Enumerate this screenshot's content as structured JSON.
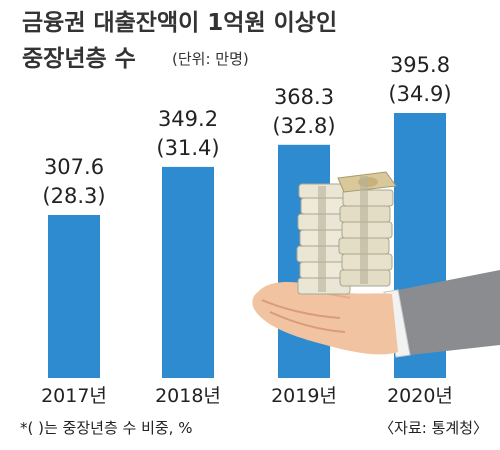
{
  "chart_data": {
    "type": "bar",
    "title": "금융권 대출잔액이 1억원 이상인 중장년층 수",
    "title_line1": "금융권 대출잔액이 1억원 이상인",
    "title_line2": "중장년층 수",
    "unit": "(단위: 만명)",
    "categories": [
      "2017년",
      "2018년",
      "2019년",
      "2020년"
    ],
    "series": [
      {
        "values": [
          307.6,
          349.2,
          368.3,
          395.8
        ]
      }
    ],
    "share_percent": [
      28.3,
      31.4,
      32.8,
      34.9
    ],
    "value_labels": [
      "307.6",
      "349.2",
      "368.3",
      "395.8"
    ],
    "share_labels": [
      "(28.3)",
      "(31.4)",
      "(32.8)",
      "(34.9)"
    ],
    "bar_color": "#2f8bd0",
    "footnote": "*(  )는 중장년층 수 비중, %",
    "source": "〈자료: 통계청〉",
    "grid": false,
    "legend": "none"
  },
  "decoration": {
    "illustration": "hand-holding-money-stack-icon"
  }
}
